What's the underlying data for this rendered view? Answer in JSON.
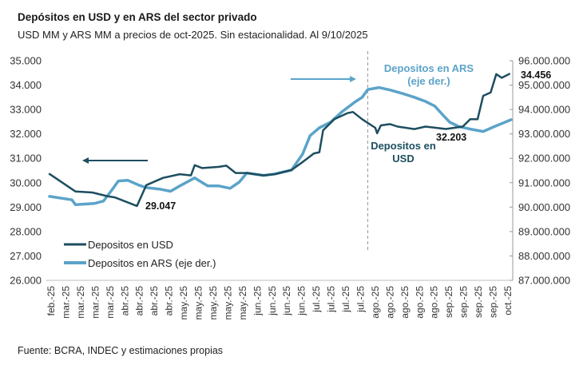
{
  "title": "Depósitos en USD y en ARS del sector privado",
  "subtitle": "USD MM y ARS MM a precios de oct-2025. Sin estacionalidad. Al 9/10/2025",
  "source": "Fuente: BCRA, INDEC y estimaciones propias",
  "chart_data": {
    "type": "line",
    "x_range": [
      "2025-02-03",
      "2025-10-09"
    ],
    "x_tick_labels": [
      "feb.-25",
      "mar.-25",
      "mar.-25",
      "mar.-25",
      "mar.-25",
      "abr.-25",
      "abr.-25",
      "abr.-25",
      "abr.-25",
      "may.-25",
      "may.-25",
      "may.-25",
      "may.-25",
      "may.-25",
      "jun.-25",
      "jun.-25",
      "jun.-25",
      "jun.-25",
      "jul.-25",
      "jul.-25",
      "jul.-25",
      "jul.-25",
      "ago.-25",
      "ago.-25",
      "ago.-25",
      "ago.-25",
      "ago.-25",
      "sep.-25",
      "sep.-25",
      "sep.-25",
      "sep.-25",
      "oct.-25"
    ],
    "y_left": {
      "range": [
        26000,
        35000
      ],
      "ticks": [
        "26.000",
        "27.000",
        "28.000",
        "29.000",
        "30.000",
        "31.000",
        "32.000",
        "33.000",
        "34.000",
        "35.000"
      ]
    },
    "y_right": {
      "range": [
        87000000,
        96000000
      ],
      "ticks": [
        "87.000.000",
        "88.000.000",
        "89.000.000",
        "90.000.000",
        "91.000.000",
        "92.000.000",
        "93.000.000",
        "94.000.000",
        "95.000.000",
        "96.000.000"
      ]
    },
    "grid": false,
    "legend_placement": "bottom-left",
    "vline_date": "2025-07-24",
    "series": [
      {
        "name": "Depositos en USD",
        "axis": "left",
        "color": "#1d4e60",
        "points": [
          [
            "2025-02-03",
            30360
          ],
          [
            "2025-02-17",
            29640
          ],
          [
            "2025-02-26",
            29600
          ],
          [
            "2025-03-06",
            29450
          ],
          [
            "2025-03-10",
            29400
          ],
          [
            "2025-03-22",
            29047
          ],
          [
            "2025-03-27",
            29900
          ],
          [
            "2025-04-05",
            30200
          ],
          [
            "2025-04-14",
            30350
          ],
          [
            "2025-04-20",
            30300
          ],
          [
            "2025-04-22",
            30720
          ],
          [
            "2025-04-26",
            30600
          ],
          [
            "2025-05-05",
            30650
          ],
          [
            "2025-05-09",
            30700
          ],
          [
            "2025-05-14",
            30400
          ],
          [
            "2025-05-20",
            30400
          ],
          [
            "2025-05-29",
            30300
          ],
          [
            "2025-06-04",
            30350
          ],
          [
            "2025-06-13",
            30520
          ],
          [
            "2025-06-19",
            30850
          ],
          [
            "2025-06-25",
            31200
          ],
          [
            "2025-06-28",
            31250
          ],
          [
            "2025-06-30",
            32150
          ],
          [
            "2025-07-06",
            32600
          ],
          [
            "2025-07-13",
            32850
          ],
          [
            "2025-07-16",
            32900
          ],
          [
            "2025-07-21",
            32600
          ],
          [
            "2025-07-28",
            32250
          ],
          [
            "2025-07-29",
            32030
          ],
          [
            "2025-07-31",
            32350
          ],
          [
            "2025-08-05",
            32400
          ],
          [
            "2025-08-09",
            32300
          ],
          [
            "2025-08-18",
            32200
          ],
          [
            "2025-08-24",
            32300
          ],
          [
            "2025-09-04",
            32203
          ],
          [
            "2025-09-13",
            32300
          ],
          [
            "2025-09-17",
            32600
          ],
          [
            "2025-09-21",
            32600
          ],
          [
            "2025-09-24",
            33560
          ],
          [
            "2025-09-28",
            33700
          ],
          [
            "2025-10-01",
            34450
          ],
          [
            "2025-10-04",
            34300
          ],
          [
            "2025-10-08",
            34456
          ]
        ]
      },
      {
        "name": "Depositos en ARS (eje der.)",
        "axis": "right",
        "color": "#5ba3c9",
        "points": [
          [
            "2025-02-03",
            90440000
          ],
          [
            "2025-02-15",
            90300000
          ],
          [
            "2025-02-17",
            90100000
          ],
          [
            "2025-02-27",
            90150000
          ],
          [
            "2025-03-04",
            90250000
          ],
          [
            "2025-03-08",
            90650000
          ],
          [
            "2025-03-12",
            91070000
          ],
          [
            "2025-03-17",
            91100000
          ],
          [
            "2025-03-23",
            90900000
          ],
          [
            "2025-03-27",
            90800000
          ],
          [
            "2025-04-03",
            90740000
          ],
          [
            "2025-04-09",
            90650000
          ],
          [
            "2025-04-14",
            90870000
          ],
          [
            "2025-04-22",
            91200000
          ],
          [
            "2025-04-29",
            90870000
          ],
          [
            "2025-05-05",
            90870000
          ],
          [
            "2025-05-11",
            90770000
          ],
          [
            "2025-05-16",
            91030000
          ],
          [
            "2025-05-20",
            91400000
          ],
          [
            "2025-05-29",
            91300000
          ],
          [
            "2025-06-04",
            91360000
          ],
          [
            "2025-06-13",
            91520000
          ],
          [
            "2025-06-19",
            92180000
          ],
          [
            "2025-06-23",
            92930000
          ],
          [
            "2025-06-28",
            93250000
          ],
          [
            "2025-07-04",
            93480000
          ],
          [
            "2025-07-10",
            93900000
          ],
          [
            "2025-07-17",
            94300000
          ],
          [
            "2025-07-21",
            94500000
          ],
          [
            "2025-07-24",
            94820000
          ],
          [
            "2025-07-30",
            94900000
          ],
          [
            "2025-08-05",
            94800000
          ],
          [
            "2025-08-12",
            94650000
          ],
          [
            "2025-08-18",
            94500000
          ],
          [
            "2025-08-24",
            94330000
          ],
          [
            "2025-08-29",
            94140000
          ],
          [
            "2025-09-02",
            93800000
          ],
          [
            "2025-09-06",
            93480000
          ],
          [
            "2025-09-11",
            93300000
          ],
          [
            "2025-09-17",
            93200000
          ],
          [
            "2025-09-24",
            93100000
          ],
          [
            "2025-09-30",
            93300000
          ],
          [
            "2025-10-09",
            93580000
          ]
        ]
      }
    ],
    "annotations": {
      "usd_min": "29.047",
      "usd_sep": "32.203",
      "usd_last": "34.456",
      "ars_label_1": "Depositos en ARS",
      "ars_label_2": "(eje der.)",
      "usd_label_1": "Depositos en",
      "usd_label_2": "USD"
    },
    "legend": [
      "Depositos en USD",
      "Depositos en ARS (eje der.)"
    ]
  }
}
